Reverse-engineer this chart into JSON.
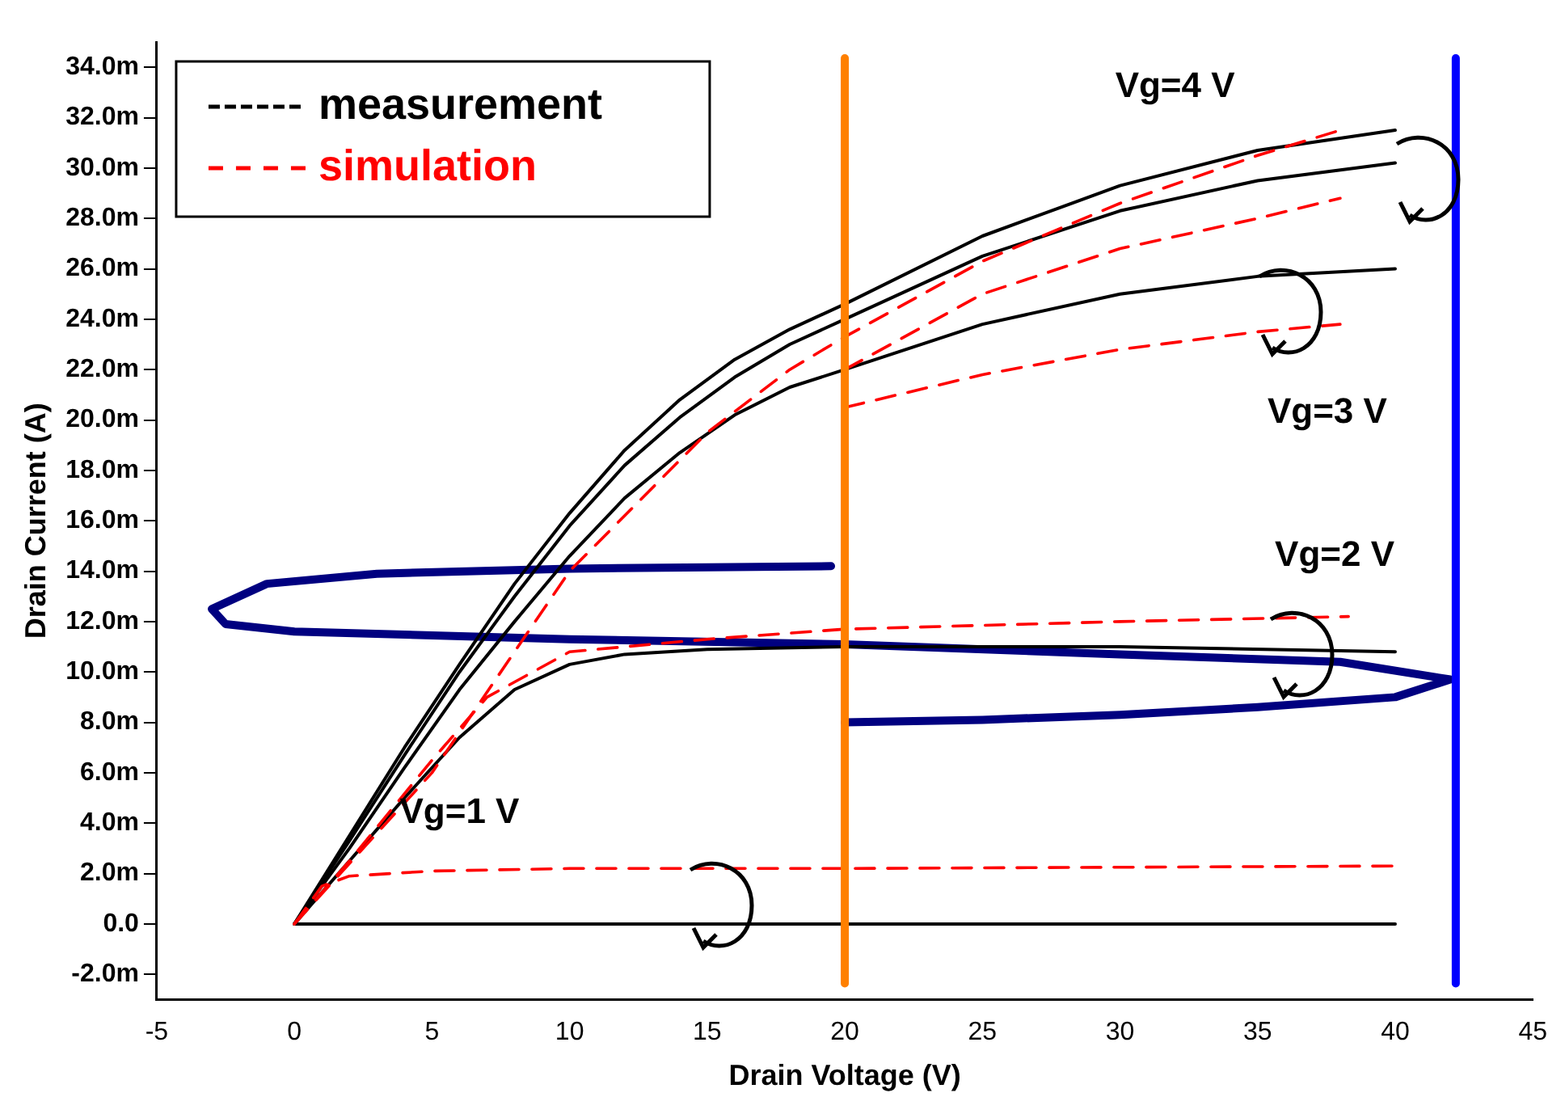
{
  "chart_data": {
    "type": "line",
    "xlabel": "Drain Voltage (V)",
    "ylabel": "Drain Current (A)",
    "xlim": [
      -5,
      45
    ],
    "xticks": [
      -5,
      0,
      5,
      10,
      15,
      20,
      25,
      30,
      35,
      40,
      45
    ],
    "ylim": [
      -3,
      35
    ],
    "yticks": [
      {
        "value": -2,
        "label": "-2.0m"
      },
      {
        "value": 0,
        "label": "0.0"
      },
      {
        "value": 2,
        "label": "2.0m"
      },
      {
        "value": 4,
        "label": "4.0m"
      },
      {
        "value": 6,
        "label": "6.0m"
      },
      {
        "value": 8,
        "label": "8.0m"
      },
      {
        "value": 10,
        "label": "10.0m"
      },
      {
        "value": 12,
        "label": "12.0m"
      },
      {
        "value": 14,
        "label": "14.0m"
      },
      {
        "value": 16,
        "label": "16.0m"
      },
      {
        "value": 18,
        "label": "18.0m"
      },
      {
        "value": 20,
        "label": "20.0m"
      },
      {
        "value": 22,
        "label": "22.0m"
      },
      {
        "value": 24,
        "label": "24.0m"
      },
      {
        "value": 26,
        "label": "26.0m"
      },
      {
        "value": 28,
        "label": "28.0m"
      },
      {
        "value": 30,
        "label": "30.0m"
      },
      {
        "value": 32,
        "label": "32.0m"
      },
      {
        "value": 34,
        "label": "34.0m"
      }
    ],
    "legend": "top left",
    "grid": false,
    "marker": "none",
    "series": [
      {
        "name": "measurement",
        "color": "#000000",
        "line_style": "solid",
        "x": [
          0,
          2,
          4,
          6,
          8,
          10,
          12,
          14,
          16,
          18,
          20,
          25,
          30,
          35,
          40
        ],
        "values": [
          0,
          3.5,
          7,
          10.3,
          13.5,
          16.3,
          18.8,
          20.8,
          22.4,
          23.6,
          24.6,
          27.3,
          29.3,
          30.7,
          31.5
        ]
      },
      {
        "color": "#000000",
        "line_style": "solid",
        "x": [
          0,
          2,
          4,
          6,
          8,
          10,
          12,
          14,
          16,
          18,
          20,
          25,
          30,
          35,
          40
        ],
        "values": [
          0,
          3.3,
          6.7,
          10,
          13,
          15.8,
          18.2,
          20.1,
          21.7,
          23,
          24,
          26.5,
          28.3,
          29.5,
          30.2
        ]
      },
      {
        "color": "#000000",
        "line_style": "solid",
        "x": [
          0,
          2,
          4,
          6,
          8,
          10,
          12,
          14,
          16,
          18,
          20,
          25,
          30,
          35,
          40
        ],
        "values": [
          0,
          3,
          6.2,
          9.3,
          12,
          14.6,
          16.9,
          18.7,
          20.2,
          21.3,
          22,
          23.8,
          25,
          25.7,
          26
        ]
      },
      {
        "color": "#000000",
        "line_style": "solid",
        "x": [
          0,
          2,
          4,
          6,
          8,
          10,
          12,
          15,
          20,
          30,
          40
        ],
        "values": [
          0,
          2.5,
          5,
          7.4,
          9.3,
          10.3,
          10.7,
          10.9,
          11,
          11,
          10.8
        ]
      },
      {
        "color": "#000000",
        "line_style": "solid",
        "x": [
          0,
          40
        ],
        "values": [
          0,
          0
        ]
      },
      {
        "name": "simulation",
        "color": "#ff0000",
        "line_style": "dashed",
        "x": [
          0,
          5,
          10,
          15,
          18,
          20,
          25,
          30,
          35,
          38
        ],
        "values": [
          0,
          6,
          14,
          19.5,
          22,
          23.3,
          26.3,
          28.6,
          30.5,
          31.5
        ]
      },
      {
        "color": "#ff0000",
        "line_style": "dashed",
        "x": [
          20,
          25,
          30,
          35,
          38
        ],
        "values": [
          22,
          25,
          26.8,
          28,
          28.8
        ]
      },
      {
        "color": "#ff0000",
        "line_style": "dashed",
        "x": [
          20,
          25,
          30,
          35,
          38
        ],
        "values": [
          20.5,
          21.8,
          22.8,
          23.5,
          23.8
        ]
      },
      {
        "color": "#ff0000",
        "line_style": "dashed",
        "x": [
          0,
          2,
          5,
          7,
          10,
          15,
          20,
          30,
          38.3
        ],
        "values": [
          0,
          2.5,
          6.5,
          9,
          10.8,
          11.3,
          11.7,
          12,
          12.2
        ]
      },
      {
        "color": "#ff0000",
        "line_style": "dashed",
        "x": [
          0,
          1,
          2,
          5,
          10,
          20,
          40
        ],
        "values": [
          0,
          1.5,
          1.9,
          2.1,
          2.2,
          2.2,
          2.3
        ]
      },
      {
        "color": "#000080",
        "line_style": "solid",
        "x": [
          19.5,
          10,
          3,
          -1,
          -3,
          -2.5,
          0,
          10,
          20,
          30,
          38,
          42,
          40,
          35,
          30,
          25,
          20
        ],
        "values": [
          14.2,
          14.1,
          13.9,
          13.5,
          12.5,
          11.9,
          11.6,
          11.3,
          11.1,
          10.7,
          10.4,
          9.7,
          9,
          8.6,
          8.3,
          8.1,
          8
        ]
      }
    ],
    "ref_lines": [
      {
        "axis": "x",
        "value": 20,
        "color": "#ff8000"
      },
      {
        "axis": "x",
        "value": 42.2,
        "color": "#0000ff"
      }
    ],
    "annotations": [
      "Vg=4 V",
      {
        "text": "Vg=3 V",
        "x": 38,
        "y": 23.8
      },
      "Vg=2 V",
      "Vg=1 V"
    ]
  }
}
